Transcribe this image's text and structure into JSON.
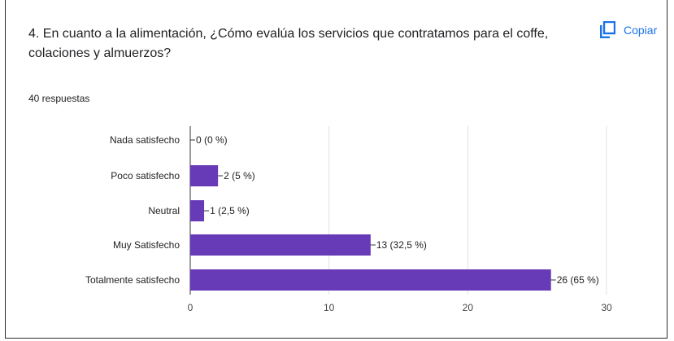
{
  "question": {
    "text": "4. En cuanto a la alimentación, ¿Cómo evalúa los servicios que contratamos para el coffe, colaciones y almuerzos?"
  },
  "copy_button": {
    "label": "Copiar",
    "icon": "copy-icon"
  },
  "response_count": "40 respuestas",
  "colors": {
    "bar": "#673ab7",
    "accent": "#1a73e8",
    "grid": "#e0e0e0"
  },
  "chart_data": {
    "type": "bar",
    "orientation": "horizontal",
    "categories": [
      "Nada satisfecho",
      "Poco satisfecho",
      "Neutral",
      "Muy Satisfecho",
      "Totalmente satisfecho"
    ],
    "values": [
      0,
      2,
      1,
      13,
      26
    ],
    "value_labels": [
      "0 (0 %)",
      "2 (5 %)",
      "1 (2,5 %)",
      "13 (32,5 %)",
      "26 (65 %)"
    ],
    "xlim": [
      0,
      30
    ],
    "xticks": [
      "0",
      "10",
      "20",
      "30"
    ],
    "grid": true
  }
}
